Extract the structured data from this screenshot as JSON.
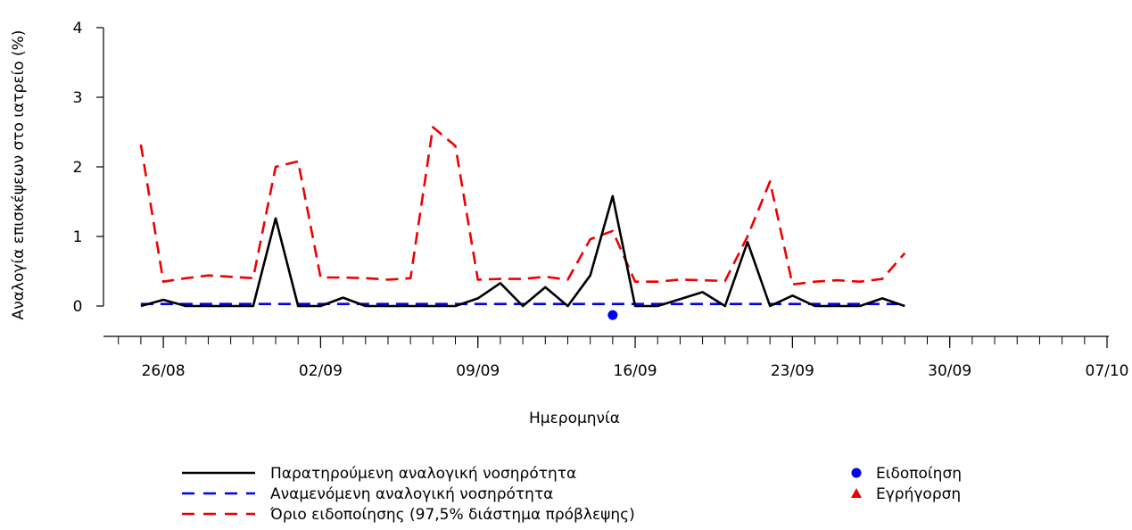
{
  "chart_data": {
    "type": "line",
    "xlabel": "Ημερομηνία",
    "ylabel": "Αναλογία επισκέψεων στο ιατρείο (%)",
    "ylim": [
      0,
      4
    ],
    "yticks": [
      0,
      1,
      2,
      3,
      4
    ],
    "xlim": [
      "2025-08-24",
      "2025-10-07"
    ],
    "xticks": [
      {
        "date": "2025-08-26",
        "label": "26/08"
      },
      {
        "date": "2025-09-02",
        "label": "02/09"
      },
      {
        "date": "2025-09-09",
        "label": "09/09"
      },
      {
        "date": "2025-09-16",
        "label": "16/09"
      },
      {
        "date": "2025-09-23",
        "label": "23/09"
      },
      {
        "date": "2025-09-30",
        "label": "30/09"
      },
      {
        "date": "2025-10-07",
        "label": "07/10"
      }
    ],
    "grid": false,
    "legend_position": "bottom",
    "x": [
      "2025-08-25",
      "2025-08-26",
      "2025-08-27",
      "2025-08-28",
      "2025-08-29",
      "2025-08-30",
      "2025-08-31",
      "2025-09-01",
      "2025-09-02",
      "2025-09-03",
      "2025-09-04",
      "2025-09-05",
      "2025-09-06",
      "2025-09-07",
      "2025-09-08",
      "2025-09-09",
      "2025-09-10",
      "2025-09-11",
      "2025-09-12",
      "2025-09-13",
      "2025-09-14",
      "2025-09-15",
      "2025-09-16",
      "2025-09-17",
      "2025-09-18",
      "2025-09-19",
      "2025-09-20",
      "2025-09-21",
      "2025-09-22",
      "2025-09-23",
      "2025-09-24",
      "2025-09-25",
      "2025-09-26",
      "2025-09-27",
      "2025-09-28"
    ],
    "series": [
      {
        "name": "Παρατηρούμενη αναλογική νοσηρότητα",
        "color": "#000000",
        "dash": "solid",
        "values": [
          0,
          0.09,
          0,
          0,
          0,
          0,
          1.26,
          0,
          0,
          0.12,
          0,
          0,
          0,
          0,
          0,
          0.11,
          0.33,
          0,
          0.27,
          0,
          0.44,
          1.58,
          0,
          0,
          0.1,
          0.2,
          0,
          0.92,
          0,
          0.15,
          0,
          0,
          0,
          0.11,
          0
        ]
      },
      {
        "name": "Αναμενόμενη αναλογική νοσηρότητα",
        "color": "#0000ee",
        "dash": "dashed",
        "values": [
          0.03,
          0.03,
          0.03,
          0.03,
          0.03,
          0.03,
          0.03,
          0.03,
          0.03,
          0.03,
          0.03,
          0.03,
          0.03,
          0.03,
          0.03,
          0.03,
          0.03,
          0.03,
          0.03,
          0.03,
          0.03,
          0.03,
          0.03,
          0.03,
          0.03,
          0.03,
          0.03,
          0.03,
          0.03,
          0.03,
          0.03,
          0.03,
          0.03,
          0.03,
          0.03
        ]
      },
      {
        "name": "Όριο ειδοποίησης (97,5% διάστημα πρόβλεψης)",
        "color": "#ee0000",
        "dash": "dashed",
        "values": [
          2.32,
          0.35,
          0.4,
          0.44,
          0.42,
          0.4,
          2.0,
          2.08,
          0.41,
          0.41,
          0.4,
          0.38,
          0.4,
          2.57,
          2.3,
          0.38,
          0.39,
          0.39,
          0.42,
          0.38,
          0.96,
          1.08,
          0.35,
          0.35,
          0.38,
          0.37,
          0.36,
          1.0,
          1.79,
          0.31,
          0.35,
          0.37,
          0.35,
          0.39,
          0.76
        ]
      }
    ],
    "markers": [
      {
        "name": "Ειδοποίηση",
        "shape": "circle",
        "color": "#0000ee",
        "points": [
          {
            "x": "2025-09-15",
            "y": -0.13
          }
        ]
      },
      {
        "name": "Εγρήγορση",
        "shape": "triangle",
        "color": "#ee0000",
        "points": []
      }
    ]
  }
}
